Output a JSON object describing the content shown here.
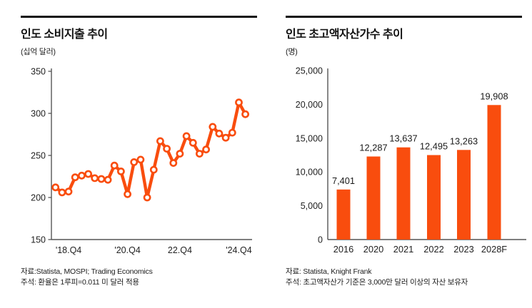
{
  "colors": {
    "accent_orange": "#F94D0E",
    "axis": "#555555",
    "tick_text": "#222222",
    "label_text": "#1a1a1a",
    "rule_black": "#111111"
  },
  "left_panel": {
    "title": "인도 소비지출 추이",
    "unit": "(십억 달러)",
    "source": "자료:Statista, MOSPI; Trading Economics",
    "note": "주석: 환율은 1루피=0.011 미 달러 적용"
  },
  "right_panel": {
    "title": "인도 초고액자산가수 추이",
    "unit": "(명)",
    "source": "자료: Statista, Knight Frank",
    "note": "주석: 초고액자산가 기준은 3,000만 달러 이상의 자산 보유자"
  },
  "chart_data": [
    {
      "type": "line",
      "title": "인도 소비지출 추이",
      "ylabel": "(십억 달러)",
      "ylim": [
        150,
        350
      ],
      "yticks": [
        350,
        300,
        250,
        200,
        150
      ],
      "ytick_labels": [
        "350",
        "300",
        "250",
        "200",
        "150"
      ],
      "x_tick_labels": [
        "'18.Q4",
        "'20.Q4",
        "22.Q4",
        "'24.Q4"
      ],
      "x_tick_indices": [
        2,
        11,
        19,
        28
      ],
      "x_description": "quarterly series, ~'18.Q2 to '24/'25",
      "values": [
        212,
        206,
        207,
        224,
        226,
        228,
        223,
        222,
        221,
        238,
        231,
        204,
        242,
        245,
        200,
        233,
        267,
        258,
        241,
        252,
        273,
        265,
        252,
        257,
        284,
        276,
        271,
        277,
        313,
        299
      ],
      "marker": "open-circle",
      "grid": false,
      "legend": "none"
    },
    {
      "type": "bar",
      "title": "인도 초고액자산가수 추이",
      "ylabel": "(명)",
      "ylim": [
        0,
        25000
      ],
      "yticks": [
        25000,
        20000,
        15000,
        10000,
        5000,
        0
      ],
      "ytick_labels": [
        "25,000",
        "20,000",
        "15,000",
        "10,000",
        "5,000",
        "0"
      ],
      "categories": [
        "2016",
        "2020",
        "2021",
        "2022",
        "2023",
        "2028F"
      ],
      "values": [
        7401,
        12287,
        13637,
        12495,
        13263,
        19908
      ],
      "data_labels": [
        "7,401",
        "12,287",
        "13,637",
        "12,495",
        "13,263",
        "19,908"
      ],
      "grid": false,
      "legend": "none"
    }
  ]
}
